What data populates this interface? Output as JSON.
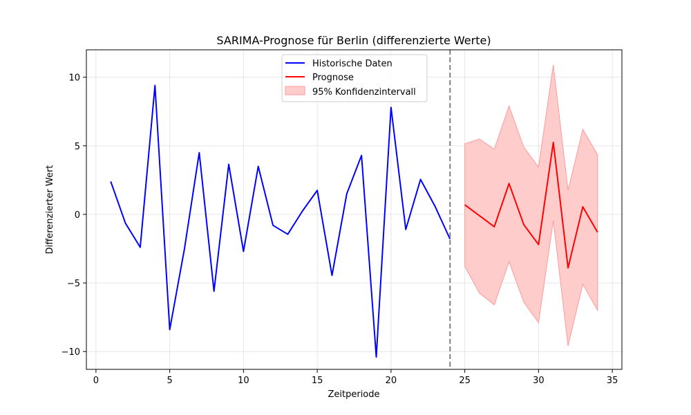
{
  "chart_data": {
    "type": "line",
    "title": "SARIMA-Prognose für Berlin (differenzierte Werte)",
    "xlabel": "Zeitperiode",
    "ylabel": "Differenzierter Wert",
    "xlim": [
      -0.65,
      35.65
    ],
    "ylim": [
      -11.3,
      12.0
    ],
    "xticks": [
      0,
      5,
      10,
      15,
      20,
      25,
      30,
      35
    ],
    "yticks": [
      -10,
      -5,
      0,
      5,
      10
    ],
    "ytick_labels": [
      "−10",
      "−5",
      "0",
      "5",
      "10"
    ],
    "grid": true,
    "legend_position": "top-center",
    "vline": {
      "x": 24,
      "color": "#7f7f7f",
      "style": "dashed"
    },
    "series": [
      {
        "name": "Historische Daten",
        "color": "#0000ff",
        "x": [
          1,
          2,
          3,
          4,
          5,
          6,
          7,
          8,
          9,
          10,
          11,
          12,
          13,
          14,
          15,
          16,
          17,
          18,
          19,
          20,
          21,
          22,
          23,
          24
        ],
        "values": [
          2.4,
          -0.65,
          -2.4,
          9.4,
          -8.4,
          -2.5,
          4.5,
          -5.6,
          3.65,
          -2.7,
          3.5,
          -0.8,
          -1.45,
          0.25,
          1.75,
          -4.45,
          1.5,
          4.3,
          -10.4,
          7.8,
          -1.1,
          2.55,
          0.55,
          -1.8
        ]
      },
      {
        "name": "Prognose",
        "color": "#ff0000",
        "x": [
          25,
          26,
          27,
          28,
          29,
          30,
          31,
          32,
          33,
          34
        ],
        "values": [
          0.7,
          -0.1,
          -0.9,
          2.25,
          -0.75,
          -2.2,
          5.25,
          -3.9,
          0.55,
          -1.3
        ]
      }
    ],
    "band": {
      "name": "95% Konfidenzintervall",
      "color": "#ffcccc",
      "edge_color": "#ff9a9a",
      "x": [
        25,
        26,
        27,
        28,
        29,
        30,
        31,
        32,
        33,
        34
      ],
      "upper": [
        5.15,
        5.5,
        4.75,
        7.9,
        4.9,
        3.45,
        10.9,
        1.75,
        6.2,
        4.35
      ],
      "lower": [
        -3.8,
        -5.75,
        -6.6,
        -3.45,
        -6.4,
        -7.9,
        -0.45,
        -9.6,
        -5.1,
        -7.0
      ]
    }
  }
}
